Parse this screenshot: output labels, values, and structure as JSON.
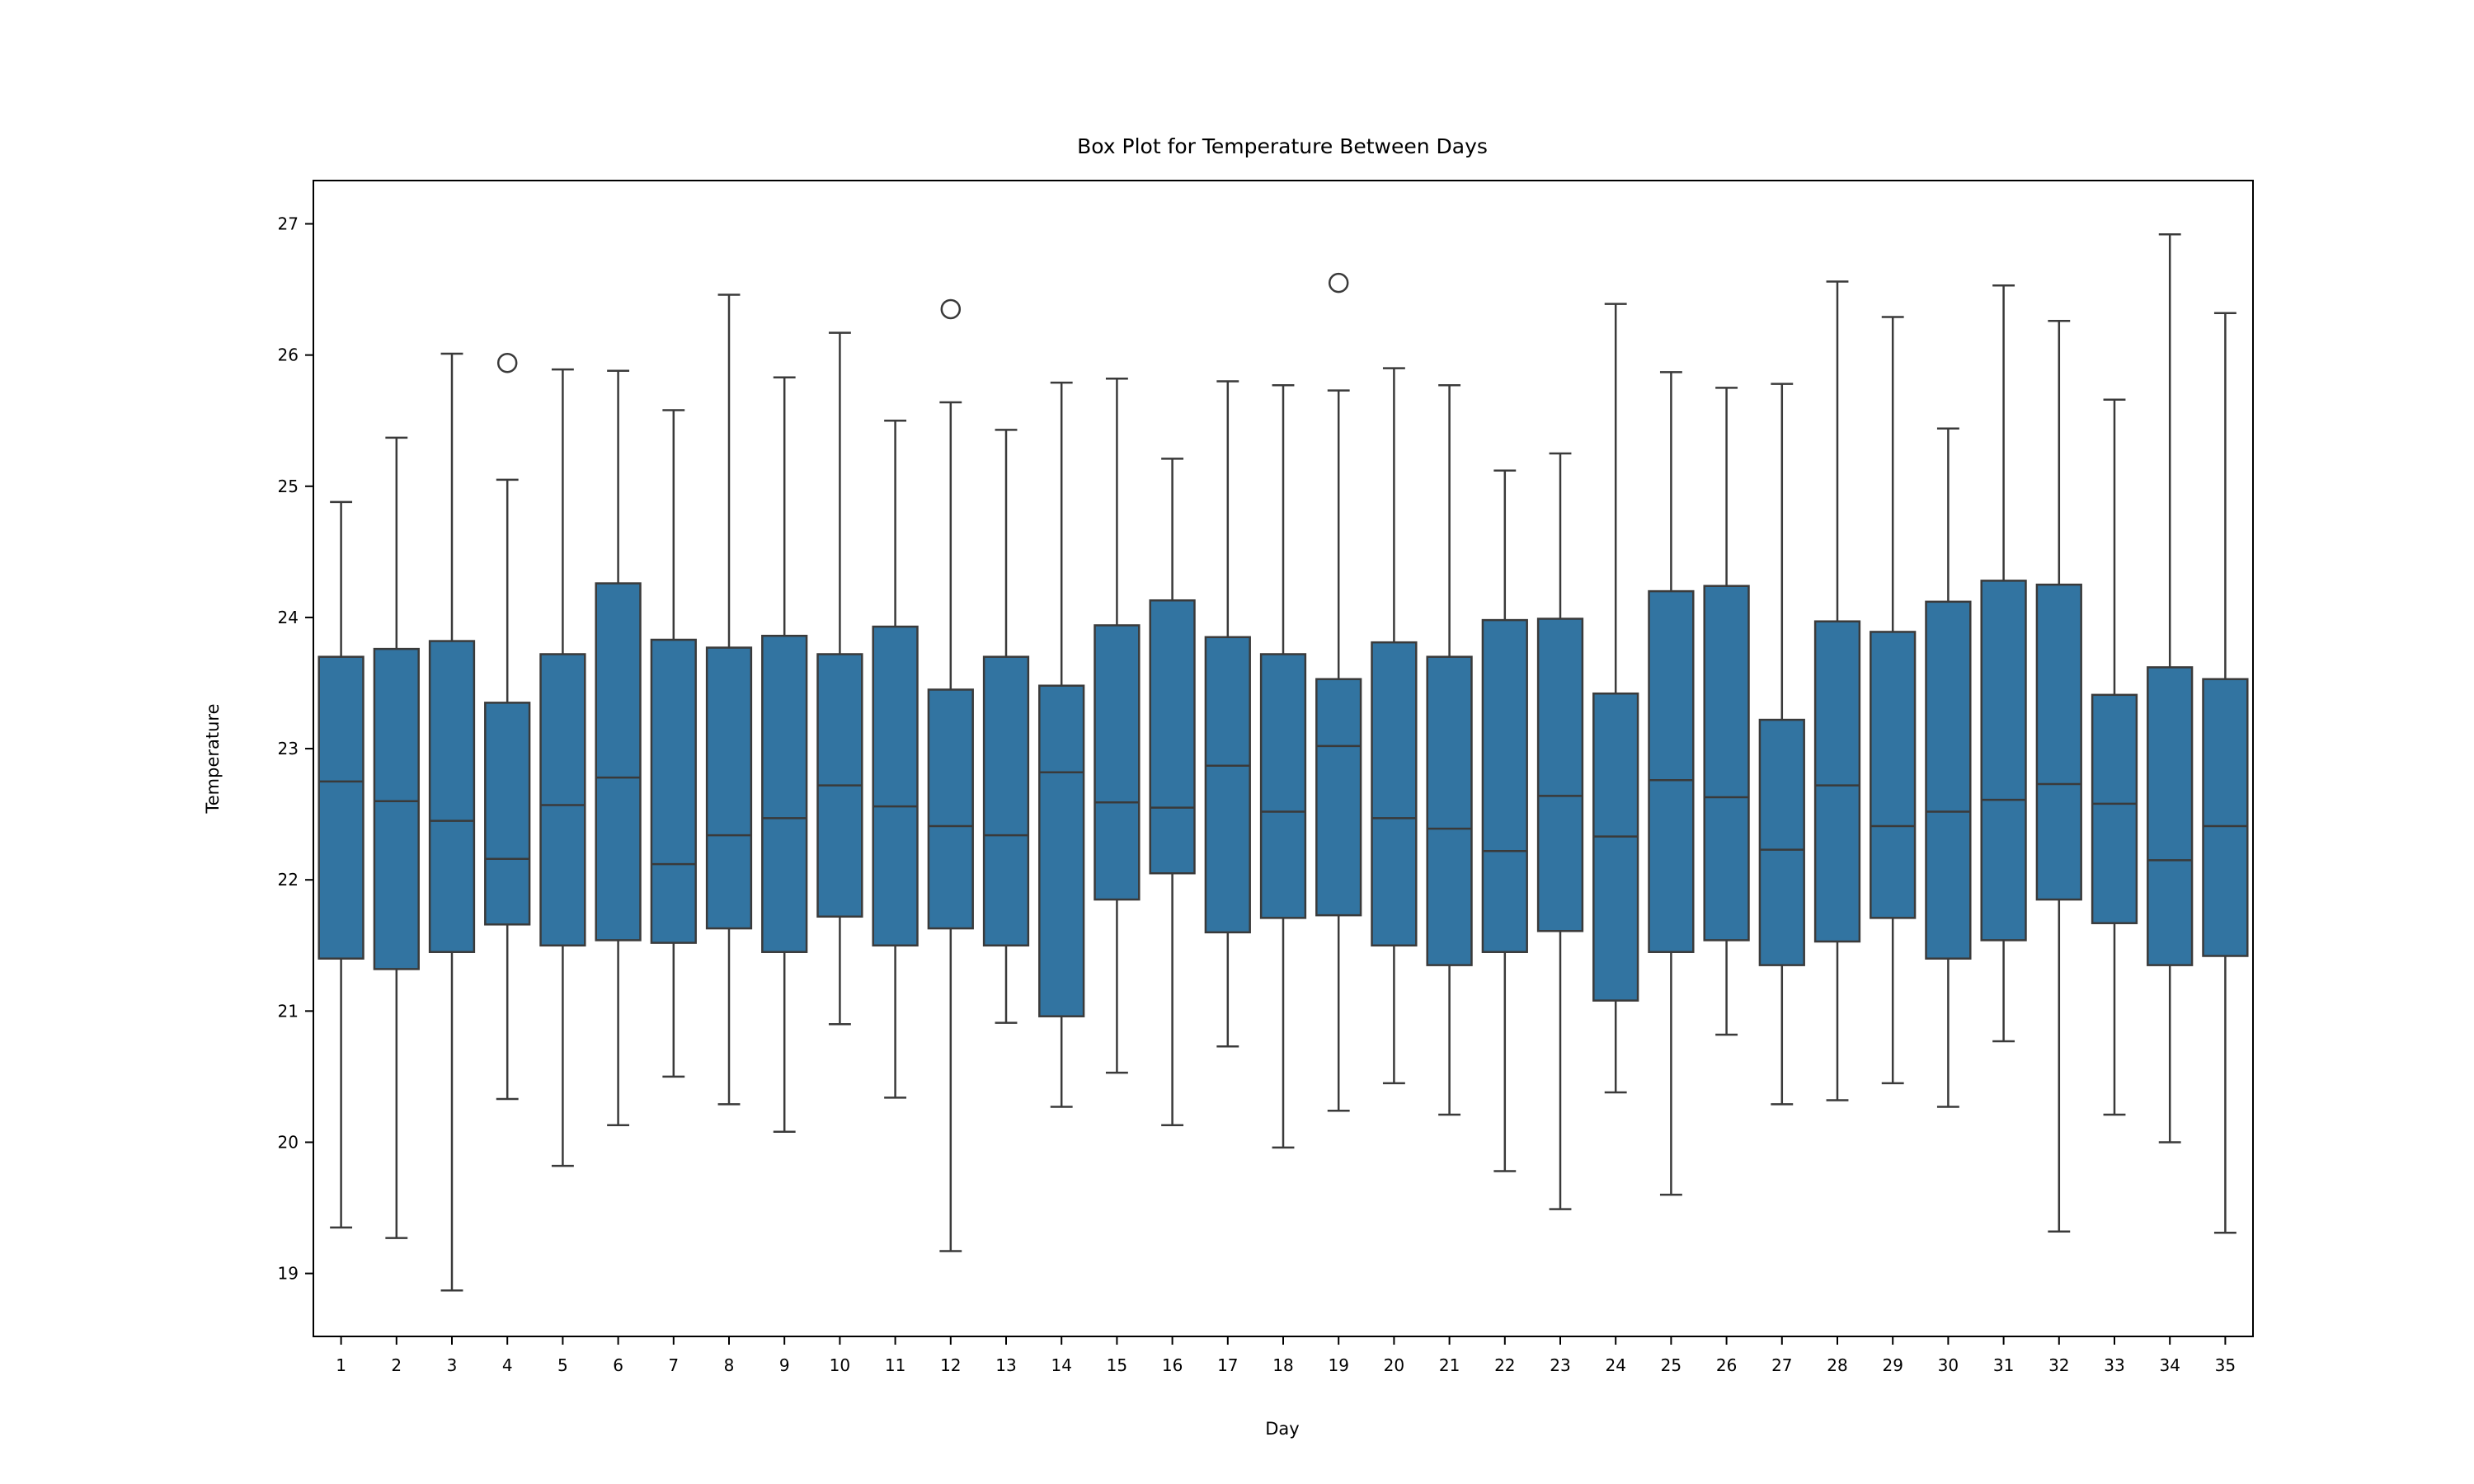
{
  "chart_data": {
    "type": "box",
    "title": "Box Plot for Temperature Between Days",
    "xlabel": "Day",
    "ylabel": "Temperature",
    "ylim": [
      18.52,
      27.33
    ],
    "yticks": [
      19,
      20,
      21,
      22,
      23,
      24,
      25,
      26,
      27
    ],
    "grid": false,
    "colors": {
      "box_fill": "#3274a1",
      "box_edge": "#3a3a3a",
      "axes": "#000000"
    },
    "categories": [
      "1",
      "2",
      "3",
      "4",
      "5",
      "6",
      "7",
      "8",
      "9",
      "10",
      "11",
      "12",
      "13",
      "14",
      "15",
      "16",
      "17",
      "18",
      "19",
      "20",
      "21",
      "22",
      "23",
      "24",
      "25",
      "26",
      "27",
      "28",
      "29",
      "30",
      "31",
      "32",
      "33",
      "34",
      "35"
    ],
    "boxes": [
      {
        "day": "1",
        "whislo": 19.35,
        "q1": 21.4,
        "med": 22.75,
        "q3": 23.7,
        "whishi": 24.88,
        "fliers": []
      },
      {
        "day": "2",
        "whislo": 19.27,
        "q1": 21.32,
        "med": 22.6,
        "q3": 23.76,
        "whishi": 25.37,
        "fliers": []
      },
      {
        "day": "3",
        "whislo": 18.87,
        "q1": 21.45,
        "med": 22.45,
        "q3": 23.82,
        "whishi": 26.01,
        "fliers": []
      },
      {
        "day": "4",
        "whislo": 20.33,
        "q1": 21.66,
        "med": 22.16,
        "q3": 23.35,
        "whishi": 25.05,
        "fliers": [
          25.94
        ]
      },
      {
        "day": "5",
        "whislo": 19.82,
        "q1": 21.5,
        "med": 22.57,
        "q3": 23.72,
        "whishi": 25.89,
        "fliers": []
      },
      {
        "day": "6",
        "whislo": 20.13,
        "q1": 21.54,
        "med": 22.78,
        "q3": 24.26,
        "whishi": 25.88,
        "fliers": []
      },
      {
        "day": "7",
        "whislo": 20.5,
        "q1": 21.52,
        "med": 22.12,
        "q3": 23.83,
        "whishi": 25.58,
        "fliers": []
      },
      {
        "day": "8",
        "whislo": 20.29,
        "q1": 21.63,
        "med": 22.34,
        "q3": 23.77,
        "whishi": 26.46,
        "fliers": []
      },
      {
        "day": "9",
        "whislo": 20.08,
        "q1": 21.45,
        "med": 22.47,
        "q3": 23.86,
        "whishi": 25.83,
        "fliers": []
      },
      {
        "day": "10",
        "whislo": 20.9,
        "q1": 21.72,
        "med": 22.72,
        "q3": 23.72,
        "whishi": 26.17,
        "fliers": []
      },
      {
        "day": "11",
        "whislo": 20.34,
        "q1": 21.5,
        "med": 22.56,
        "q3": 23.93,
        "whishi": 25.5,
        "fliers": []
      },
      {
        "day": "12",
        "whislo": 19.17,
        "q1": 21.63,
        "med": 22.41,
        "q3": 23.45,
        "whishi": 25.64,
        "fliers": [
          26.35
        ]
      },
      {
        "day": "13",
        "whislo": 20.91,
        "q1": 21.5,
        "med": 22.34,
        "q3": 23.7,
        "whishi": 25.43,
        "fliers": []
      },
      {
        "day": "14",
        "whislo": 20.27,
        "q1": 20.96,
        "med": 22.82,
        "q3": 23.48,
        "whishi": 25.79,
        "fliers": []
      },
      {
        "day": "15",
        "whislo": 20.53,
        "q1": 21.85,
        "med": 22.59,
        "q3": 23.94,
        "whishi": 25.82,
        "fliers": []
      },
      {
        "day": "16",
        "whislo": 20.13,
        "q1": 22.05,
        "med": 22.55,
        "q3": 24.13,
        "whishi": 25.21,
        "fliers": []
      },
      {
        "day": "17",
        "whislo": 20.73,
        "q1": 21.6,
        "med": 22.87,
        "q3": 23.85,
        "whishi": 25.8,
        "fliers": []
      },
      {
        "day": "18",
        "whislo": 19.96,
        "q1": 21.71,
        "med": 22.52,
        "q3": 23.72,
        "whishi": 25.77,
        "fliers": []
      },
      {
        "day": "19",
        "whislo": 20.24,
        "q1": 21.73,
        "med": 23.02,
        "q3": 23.53,
        "whishi": 25.73,
        "fliers": [
          26.55
        ]
      },
      {
        "day": "20",
        "whislo": 20.45,
        "q1": 21.5,
        "med": 22.47,
        "q3": 23.81,
        "whishi": 25.9,
        "fliers": []
      },
      {
        "day": "21",
        "whislo": 20.21,
        "q1": 21.35,
        "med": 22.39,
        "q3": 23.7,
        "whishi": 25.77,
        "fliers": []
      },
      {
        "day": "22",
        "whislo": 19.78,
        "q1": 21.45,
        "med": 22.22,
        "q3": 23.98,
        "whishi": 25.12,
        "fliers": []
      },
      {
        "day": "23",
        "whislo": 19.49,
        "q1": 21.61,
        "med": 22.64,
        "q3": 23.99,
        "whishi": 25.25,
        "fliers": []
      },
      {
        "day": "24",
        "whislo": 20.38,
        "q1": 21.08,
        "med": 22.33,
        "q3": 23.42,
        "whishi": 26.39,
        "fliers": []
      },
      {
        "day": "25",
        "whislo": 19.6,
        "q1": 21.45,
        "med": 22.76,
        "q3": 24.2,
        "whishi": 25.87,
        "fliers": []
      },
      {
        "day": "26",
        "whislo": 20.82,
        "q1": 21.54,
        "med": 22.63,
        "q3": 24.24,
        "whishi": 25.75,
        "fliers": []
      },
      {
        "day": "27",
        "whislo": 20.29,
        "q1": 21.35,
        "med": 22.23,
        "q3": 23.22,
        "whishi": 25.78,
        "fliers": []
      },
      {
        "day": "28",
        "whislo": 20.32,
        "q1": 21.53,
        "med": 22.72,
        "q3": 23.97,
        "whishi": 26.56,
        "fliers": []
      },
      {
        "day": "29",
        "whislo": 20.45,
        "q1": 21.71,
        "med": 22.41,
        "q3": 23.89,
        "whishi": 26.29,
        "fliers": []
      },
      {
        "day": "30",
        "whislo": 20.27,
        "q1": 21.4,
        "med": 22.52,
        "q3": 24.12,
        "whishi": 25.44,
        "fliers": []
      },
      {
        "day": "31",
        "whislo": 20.77,
        "q1": 21.54,
        "med": 22.61,
        "q3": 24.28,
        "whishi": 26.53,
        "fliers": []
      },
      {
        "day": "32",
        "whislo": 19.32,
        "q1": 21.85,
        "med": 22.73,
        "q3": 24.25,
        "whishi": 26.26,
        "fliers": []
      },
      {
        "day": "33",
        "whislo": 20.21,
        "q1": 21.67,
        "med": 22.58,
        "q3": 23.41,
        "whishi": 25.66,
        "fliers": []
      },
      {
        "day": "34",
        "whislo": 20.0,
        "q1": 21.35,
        "med": 22.15,
        "q3": 23.62,
        "whishi": 26.92,
        "fliers": []
      },
      {
        "day": "35",
        "whislo": 19.31,
        "q1": 21.42,
        "med": 22.41,
        "q3": 23.53,
        "whishi": 26.32,
        "fliers": []
      }
    ]
  }
}
